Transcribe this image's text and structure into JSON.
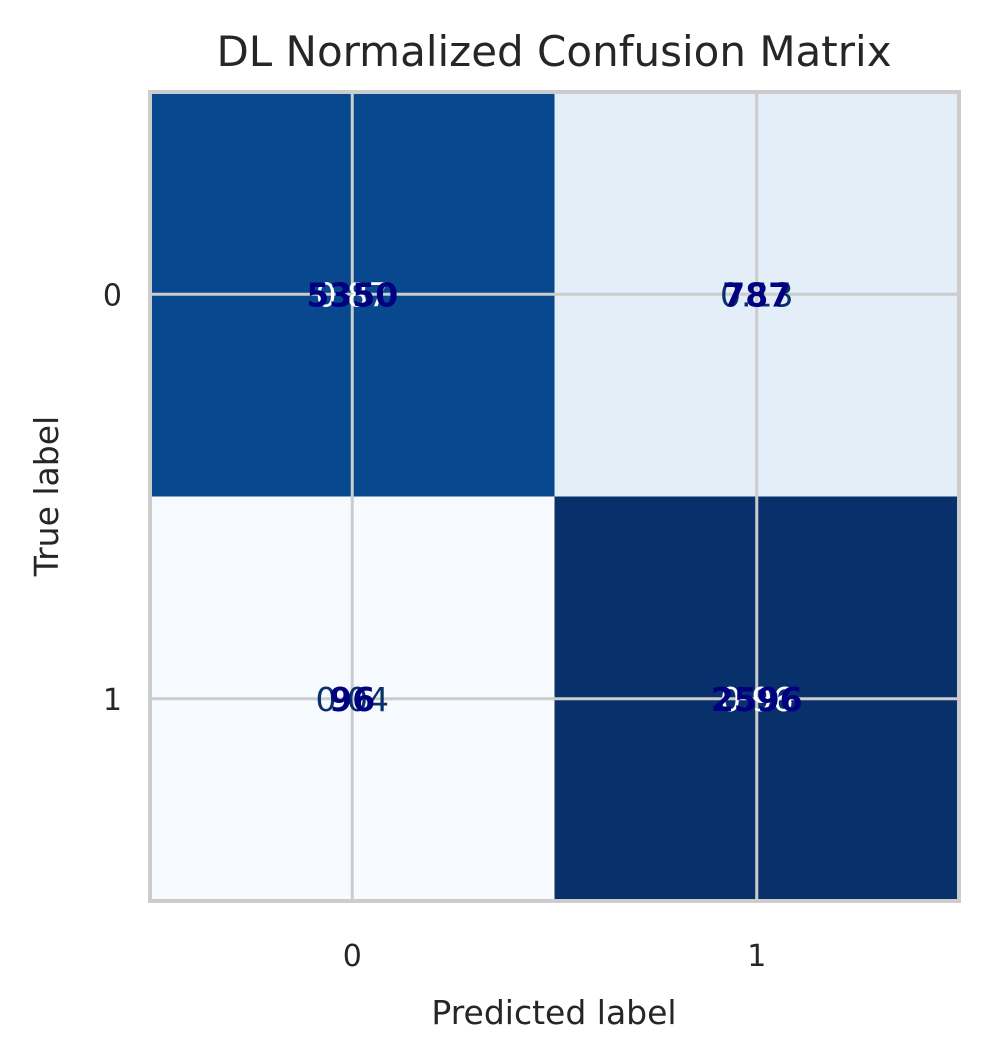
{
  "chart_data": {
    "type": "heatmap",
    "title": "DL Normalized Confusion Matrix",
    "xlabel": "Predicted label",
    "ylabel": "True label",
    "x_ticks": [
      "0",
      "1"
    ],
    "y_ticks": [
      "0",
      "1"
    ],
    "colormap": "Blues",
    "grid": true,
    "normalized": [
      [
        0.87,
        0.13
      ],
      [
        0.04,
        0.96
      ]
    ],
    "normalized_labels": [
      [
        "0.87",
        "0.13"
      ],
      [
        "0.04",
        "0.96"
      ]
    ],
    "counts": [
      [
        5350,
        787
      ],
      [
        96,
        2596
      ]
    ],
    "count_labels": [
      [
        "5350",
        "787"
      ],
      [
        "96",
        "2596"
      ]
    ],
    "cell_colors": [
      [
        "#08488e",
        "#e3eef8"
      ],
      [
        "#f7fbff",
        "#08306b"
      ]
    ],
    "norm_text_colors": [
      [
        "#ffffff",
        "#08306b"
      ],
      [
        "#08306b",
        "#ffffff"
      ]
    ]
  }
}
